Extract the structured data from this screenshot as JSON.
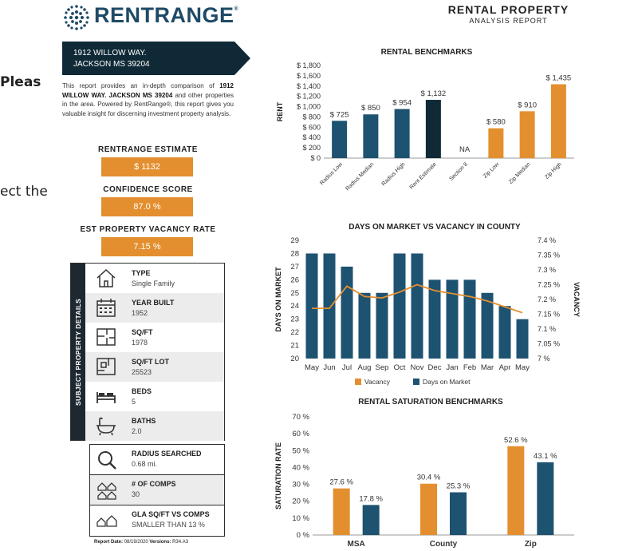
{
  "side_text": {
    "line1": "Pleas",
    "line2": "ect the"
  },
  "logo": {
    "brand": "RENTRANGE",
    "registered": "®"
  },
  "report": {
    "title": "RENTAL PROPERTY",
    "subtitle": "ANALYSIS REPORT"
  },
  "address": {
    "line1": "1912 WILLOW WAY.",
    "line2": "JACKSON MS 39204"
  },
  "intro": {
    "p1": "This report provides an in-depth comparison of ",
    "bold": "1912 WILLOW WAY. JACKSON MS 39204",
    "p2": " and other properties in the area. Powered by RentRange®, this report gives you valuable insight for discerning investment property analysis."
  },
  "estimate": {
    "label": "RENTRANGE ESTIMATE",
    "value": "$ 1132"
  },
  "confidence": {
    "label": "CONFIDENCE SCORE",
    "value": "87.0 %"
  },
  "vacancy": {
    "label": "EST PROPERTY VACANCY RATE",
    "value": "7.15 %"
  },
  "details": {
    "side_label": "SUBJECT PROPERTY DETAILS",
    "rows": [
      {
        "title": "TYPE",
        "value": "Single Family"
      },
      {
        "title": "YEAR BUILT",
        "value": "1952"
      },
      {
        "title": "SQ/FT",
        "value": "1978"
      },
      {
        "title": "SQ/FT LOT",
        "value": "25523"
      },
      {
        "title": "BEDS",
        "value": "5"
      },
      {
        "title": "BATHS",
        "value": "2.0"
      }
    ]
  },
  "radius": {
    "title": "RADIUS SEARCHED",
    "value": "0.68 mi."
  },
  "comps": {
    "title": "# OF COMPS",
    "value": "30"
  },
  "gla": {
    "title": "GLA SQ/FT VS COMPS",
    "value": "SMALLER THAN 13 %"
  },
  "footer": {
    "date_label": "Report Date:",
    "date": "08/19/2020",
    "version_label": "Versions:",
    "version": "R34.A3"
  },
  "colors": {
    "navy": "#1e5271",
    "orange": "#e38f2f",
    "dark": "#0f2a36"
  },
  "chart_data": [
    {
      "type": "bar",
      "title": "RENTAL BENCHMARKS",
      "ylabel": "RENT",
      "ylim": [
        0,
        1800
      ],
      "yticks": [
        "$ 0",
        "$ 200",
        "$ 400",
        "$ 600",
        "$ 800",
        "$ 1,000",
        "$ 1,200",
        "$ 1,400",
        "$ 1,600",
        "$ 1,800"
      ],
      "categories": [
        "Radius Low",
        "Radius Median",
        "Radius High",
        "Rent Estimate",
        "Section 8",
        "Zip Low",
        "Zip Median",
        "Zip High"
      ],
      "values": [
        725,
        850,
        954,
        1132,
        null,
        580,
        910,
        1435
      ],
      "labels": [
        "$ 725",
        "$ 850",
        "$ 954",
        "$ 1,132",
        "NA",
        "$ 580",
        "$ 910",
        "$ 1,435"
      ],
      "colors": [
        "navy",
        "navy",
        "navy",
        "dark",
        "none",
        "orange",
        "orange",
        "orange"
      ]
    },
    {
      "type": "bar+line",
      "title": "DAYS ON MARKET VS VACANCY IN COUNTY",
      "ylabel": "DAYS ON MARKET",
      "y2label": "VACANCY",
      "ylim": [
        20,
        29
      ],
      "y2lim": [
        7.0,
        7.4
      ],
      "yticks": [
        "20",
        "21",
        "22",
        "23",
        "24",
        "25",
        "26",
        "27",
        "28",
        "29"
      ],
      "y2ticks": [
        "7 %",
        "7.05 %",
        "7.1 %",
        "7.15 %",
        "7.2 %",
        "7.25 %",
        "7.3 %",
        "7.35 %",
        "7.4 %"
      ],
      "categories": [
        "May",
        "Jun",
        "Jul",
        "Aug",
        "Sep",
        "Oct",
        "Nov",
        "Dec",
        "Jan",
        "Feb",
        "Mar",
        "Apr",
        "May"
      ],
      "series": [
        {
          "name": "Days on Market",
          "values": [
            28,
            28,
            27,
            25,
            25,
            28,
            28,
            26,
            26,
            26,
            25,
            24,
            23
          ]
        },
        {
          "name": "Vacancy",
          "values": [
            7.17,
            7.17,
            7.245,
            7.21,
            7.205,
            7.225,
            7.25,
            7.23,
            7.22,
            7.21,
            7.195,
            7.175,
            7.155
          ]
        }
      ],
      "legend": [
        "Vacancy",
        "Days on Market"
      ]
    },
    {
      "type": "bar",
      "title": "RENTAL SATURATION BENCHMARKS",
      "ylabel": "SATURATION RATE",
      "ylim": [
        0,
        70
      ],
      "yticks": [
        "0 %",
        "10 %",
        "20 %",
        "30 %",
        "40 %",
        "50 %",
        "60 %",
        "70 %"
      ],
      "categories": [
        "MSA",
        "County",
        "Zip"
      ],
      "series": [
        {
          "name": "Orange",
          "values": [
            27.6,
            30.4,
            52.6
          ],
          "labels": [
            "27.6 %",
            "30.4 %",
            "52.6 %"
          ]
        },
        {
          "name": "Navy",
          "values": [
            17.8,
            25.3,
            43.1
          ],
          "labels": [
            "17.8 %",
            "25.3 %",
            "43.1 %"
          ]
        }
      ]
    }
  ]
}
